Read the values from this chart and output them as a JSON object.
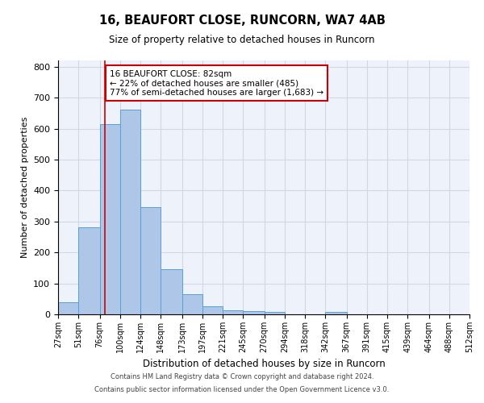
{
  "title1": "16, BEAUFORT CLOSE, RUNCORN, WA7 4AB",
  "title2": "Size of property relative to detached houses in Runcorn",
  "xlabel": "Distribution of detached houses by size in Runcorn",
  "ylabel": "Number of detached properties",
  "bin_edges": [
    27,
    51,
    76,
    100,
    124,
    148,
    173,
    197,
    221,
    245,
    270,
    294,
    318,
    342,
    367,
    391,
    415,
    439,
    464,
    488,
    512
  ],
  "bar_heights": [
    40,
    280,
    615,
    660,
    345,
    147,
    65,
    27,
    14,
    10,
    9,
    0,
    0,
    7,
    0,
    0,
    0,
    0,
    0,
    0
  ],
  "bar_color": "#aec6e8",
  "bar_edge_color": "#5a9fd4",
  "grid_color": "#d0d8e8",
  "background_color": "#eef2fa",
  "red_line_x": 82,
  "annotation_text": "16 BEAUFORT CLOSE: 82sqm\n← 22% of detached houses are smaller (485)\n77% of semi-detached houses are larger (1,683) →",
  "annotation_box_color": "#ffffff",
  "annotation_box_edge": "#cc0000",
  "ylim": [
    0,
    820
  ],
  "yticks": [
    0,
    100,
    200,
    300,
    400,
    500,
    600,
    700,
    800
  ],
  "footer1": "Contains HM Land Registry data © Crown copyright and database right 2024.",
  "footer2": "Contains public sector information licensed under the Open Government Licence v3.0."
}
